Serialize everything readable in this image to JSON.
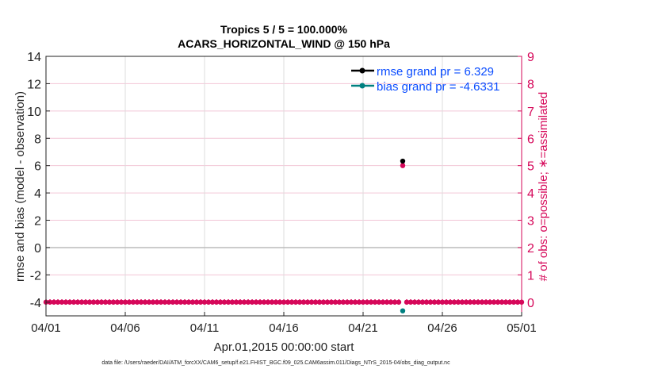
{
  "chart_data": {
    "type": "line",
    "title": [
      "Tropics 5 / 5 = 100.000%",
      "ACARS_HORIZONTAL_WIND @ 150 hPa"
    ],
    "xlabel": "Apr.01,2015 00:00:00 start",
    "ylabel": "rmse and bias (model - observation)",
    "ylabel_right": "# of obs: o=possible; ∗=assimilated",
    "footer": "data file: /Users/raeder/DAI/ATM_forcXX/CAM6_setup/f.e21.FHIST_BGC.f09_025.CAM6assim.011/Diags_NTrS_2015-04/obs_diag_output.nc",
    "xlim": [
      "2015-04-01T00",
      "2015-05-01T00"
    ],
    "x_ticks": [
      "04/01",
      "04/06",
      "04/11",
      "04/16",
      "04/21",
      "04/26",
      "05/01"
    ],
    "ylim": [
      -5,
      14
    ],
    "y_ticks": [
      -4,
      -2,
      0,
      2,
      4,
      6,
      8,
      10,
      12,
      14
    ],
    "ylim_right": [
      -0.5,
      9
    ],
    "y_ticks_right": [
      0,
      1,
      2,
      3,
      4,
      5,
      6,
      7,
      8,
      9
    ],
    "grid": true,
    "legend_position": "top-right",
    "colors": {
      "rmse": "#000000",
      "bias": "#008080",
      "obs": "#d6085a",
      "legend_text": "#0a4cff",
      "grid_right": "#f2c6d6"
    },
    "series": [
      {
        "name": "rmse grand pr = 6.329",
        "axis": "left",
        "points": [
          {
            "x": "2015-04-23T12",
            "y": 6.329
          }
        ]
      },
      {
        "name": "bias grand pr = -4.6331",
        "axis": "left",
        "points": [
          {
            "x": "2015-04-23T12",
            "y": -4.6331
          }
        ]
      }
    ],
    "obs_counts": {
      "axis": "right",
      "start": "2015-04-01T00",
      "end": "2015-05-01T00",
      "interval_hours": 6,
      "nonzero": [
        {
          "x": "2015-04-23T12",
          "possible": 5,
          "assimilated": 5
        }
      ],
      "other_value": 0
    }
  }
}
